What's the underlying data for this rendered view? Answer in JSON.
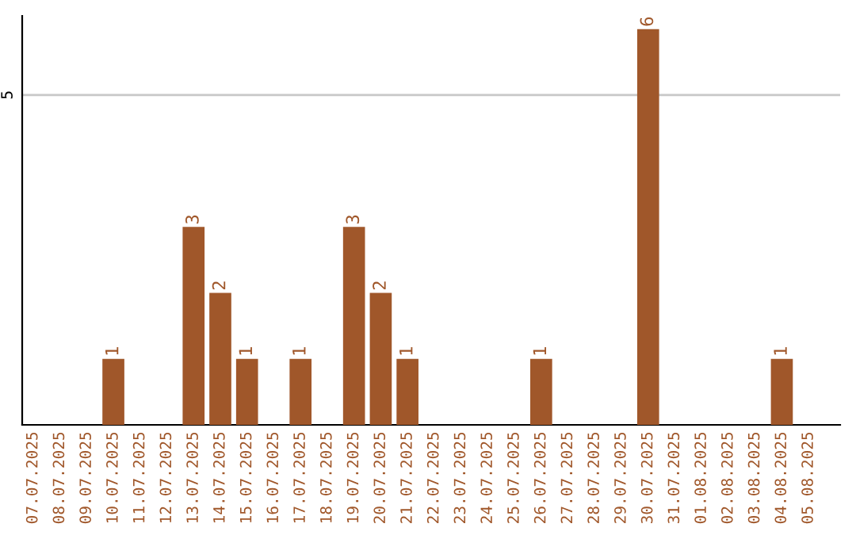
{
  "chart_data": {
    "type": "bar",
    "categories": [
      "07.07.2025",
      "08.07.2025",
      "09.07.2025",
      "10.07.2025",
      "11.07.2025",
      "12.07.2025",
      "13.07.2025",
      "14.07.2025",
      "15.07.2025",
      "16.07.2025",
      "17.07.2025",
      "18.07.2025",
      "19.07.2025",
      "20.07.2025",
      "21.07.2025",
      "22.07.2025",
      "23.07.2025",
      "24.07.2025",
      "25.07.2025",
      "26.07.2025",
      "27.07.2025",
      "28.07.2025",
      "29.07.2025",
      "30.07.2025",
      "31.07.2025",
      "01.08.2025",
      "02.08.2025",
      "03.08.2025",
      "04.08.2025",
      "05.08.2025"
    ],
    "values": [
      0,
      0,
      0,
      1,
      0,
      0,
      3,
      2,
      1,
      0,
      1,
      0,
      3,
      2,
      1,
      0,
      0,
      0,
      0,
      1,
      0,
      0,
      0,
      6,
      0,
      0,
      0,
      0,
      1,
      0
    ],
    "value_labels": [
      null,
      null,
      null,
      "1",
      null,
      null,
      "3",
      "2",
      "1",
      null,
      "1",
      null,
      "3",
      "2",
      "1",
      null,
      null,
      null,
      null,
      "1",
      null,
      null,
      null,
      "6",
      null,
      null,
      null,
      null,
      "1",
      null
    ],
    "color": "#a0572a",
    "ylim": [
      0,
      6.2
    ],
    "yticks": [
      5
    ],
    "grid": "y",
    "legend": false
  }
}
